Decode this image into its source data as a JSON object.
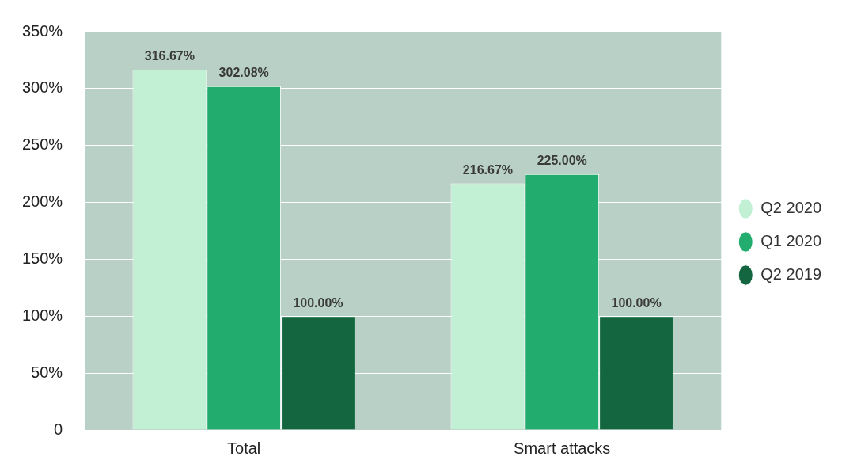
{
  "chart_data": {
    "type": "bar",
    "categories": [
      "Total",
      "Smart attacks"
    ],
    "series": [
      {
        "name": "Q2 2020",
        "color": "#c2f0d4",
        "values": [
          316.67,
          216.67
        ],
        "value_labels": [
          "316.67%",
          "216.67%"
        ]
      },
      {
        "name": "Q1 2020",
        "color": "#22ad6e",
        "values": [
          302.08,
          225
        ],
        "value_labels": [
          "302.08%",
          "225.00%"
        ]
      },
      {
        "name": "Q2 2019",
        "color": "#136640",
        "values": [
          100,
          100
        ],
        "value_labels": [
          "100.00%",
          "100.00%"
        ]
      }
    ],
    "ylim": [
      0,
      350
    ],
    "yticks": [
      {
        "value": 0,
        "label": "0"
      },
      {
        "value": 50,
        "label": "50%"
      },
      {
        "value": 100,
        "label": "100%"
      },
      {
        "value": 150,
        "label": "150%"
      },
      {
        "value": 200,
        "label": "200%"
      },
      {
        "value": 250,
        "label": "250%"
      },
      {
        "value": 300,
        "label": "300%"
      },
      {
        "value": 350,
        "label": "350%"
      }
    ],
    "grid": "y",
    "legend": "right",
    "marker": "circle"
  }
}
